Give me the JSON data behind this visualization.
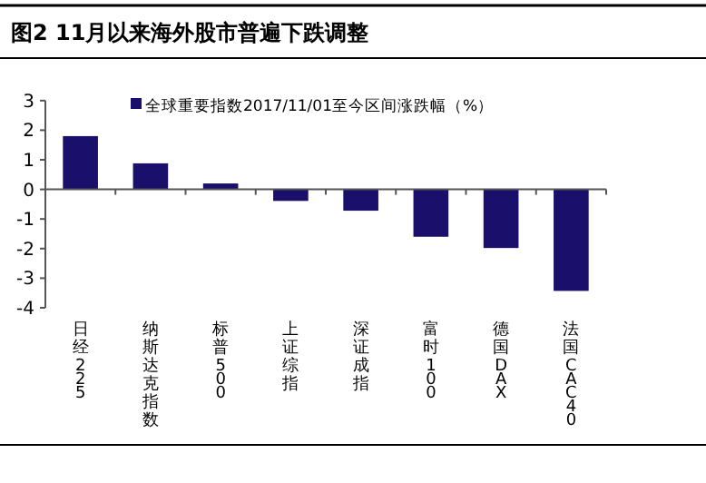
{
  "chart_data": {
    "type": "bar",
    "title": "图2  11月以来海外股市普遍下跌调整",
    "categories": [
      "日经225",
      "纳斯达克指数",
      "标普500",
      "上证综指",
      "深证成指",
      "富时100",
      "德国DAX",
      "法国CAC40"
    ],
    "series": [
      {
        "name": "全球重要指数2017/11/01至今区间涨跌幅（%）",
        "color": "#1a0f6b",
        "values": [
          1.8,
          0.88,
          0.2,
          -0.39,
          -0.72,
          -1.6,
          -1.98,
          -3.43
        ]
      }
    ],
    "ylim": [
      -4,
      3
    ],
    "yticks": [
      -4,
      -3,
      -2,
      -1,
      0,
      1,
      2,
      3
    ],
    "legend": "top"
  }
}
